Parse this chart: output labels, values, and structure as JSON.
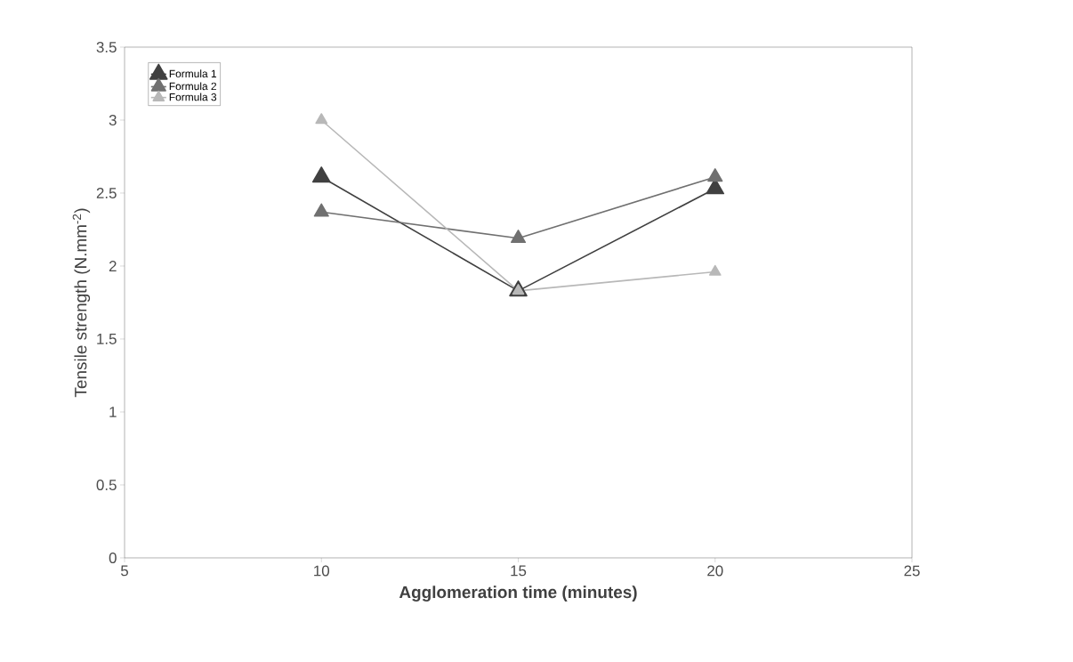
{
  "chart_data": {
    "type": "line",
    "xlabel": "Agglomeration time (minutes)",
    "ylabel": "Tensile strength (N.mm$^{-2}$)",
    "x": [
      10,
      15,
      20
    ],
    "series": [
      {
        "name": "Formula 1",
        "color": "#404040",
        "values": [
          2.61,
          1.83,
          2.53
        ]
      },
      {
        "name": "Formula 2",
        "color": "#707070",
        "values": [
          2.37,
          2.19,
          2.61
        ]
      },
      {
        "name": "Formula 3",
        "color": "#b8b8b8",
        "values": [
          3.0,
          1.83,
          1.96
        ]
      }
    ],
    "xlim": [
      5,
      25
    ],
    "xticks": [
      5,
      10,
      15,
      20,
      25
    ],
    "ylim": [
      0,
      3.5
    ],
    "yticks": [
      0,
      0.5,
      1,
      1.5,
      2,
      2.5,
      3,
      3.5
    ],
    "legend": "top left",
    "marker": "triangle",
    "line_style": "solid",
    "grid": false
  }
}
